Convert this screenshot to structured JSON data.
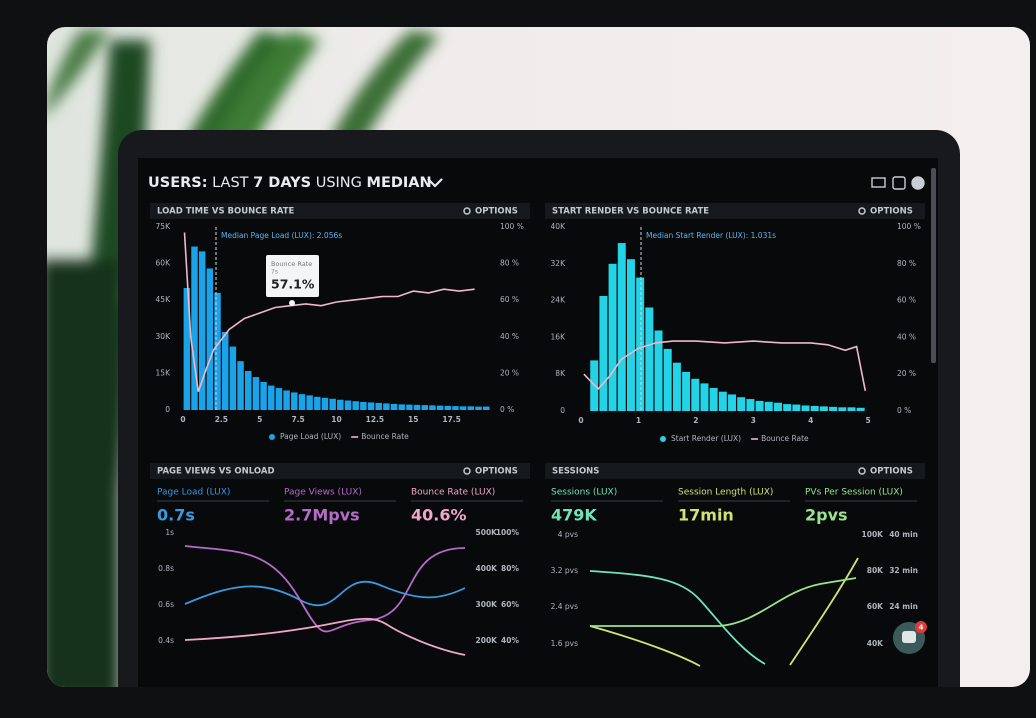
{
  "header": {
    "title": [
      "USERS:",
      "LAST",
      "7 DAYS",
      "USING",
      "MEDIAN"
    ]
  },
  "chart_data": [
    {
      "type": "histogram",
      "title": "LOAD TIME VS BOUNCE RATE",
      "options": "OPTIONS",
      "annotation": "Median Page Load (LUX): 2.056s",
      "tooltip": {
        "title": "Bounce Rate",
        "subtitle": "7s",
        "value": "57.1%"
      },
      "bins": [
        0,
        0.5,
        1,
        1.5,
        2,
        2.5,
        3,
        3.5,
        4,
        4.5,
        5,
        5.5,
        6,
        6.5,
        7,
        7.5,
        8,
        8.5,
        9,
        9.5,
        10,
        10.5,
        11,
        11.5,
        12,
        12.5,
        13,
        13.5,
        14,
        14.5,
        15,
        15.5,
        16,
        16.5,
        17,
        17.5,
        18,
        18.5,
        19,
        19.5,
        20
      ],
      "series": [
        {
          "name": "Page Load (LUX)",
          "color": "#1aa3e8",
          "values": [
            50000,
            67000,
            65000,
            58000,
            48000,
            32000,
            26000,
            20000,
            16000,
            13500,
            11500,
            10000,
            9000,
            8000,
            7200,
            6500,
            6000,
            5400,
            5000,
            4600,
            4200,
            3900,
            3600,
            3300,
            3100,
            2900,
            2700,
            2500,
            2300,
            2200,
            2100,
            2000,
            1900,
            1800,
            1700,
            1600,
            1500,
            1500,
            1400,
            1400
          ]
        },
        {
          "name": "Bounce Rate",
          "color": "#f0b8c8",
          "axis": "y2",
          "x": [
            0.1,
            0.5,
            1,
            1.5,
            2,
            3,
            4,
            5,
            6,
            7,
            8,
            9,
            10,
            11,
            12,
            13,
            14,
            15,
            16,
            17,
            18,
            19
          ],
          "values": [
            97,
            40,
            10,
            22,
            33,
            44,
            50,
            53,
            56,
            57,
            58,
            57,
            59,
            60,
            61,
            62,
            62,
            65,
            64,
            66,
            65,
            66
          ]
        }
      ],
      "xlim": [
        0,
        20
      ],
      "ylim": [
        0,
        75000
      ],
      "y2lim": [
        0,
        100
      ],
      "xticks": [
        0,
        2.5,
        5,
        7.5,
        10,
        12.5,
        15,
        17.5
      ],
      "yticks": [
        {
          "value": 75000,
          "label": "75K"
        },
        {
          "value": 60000,
          "label": "60K"
        },
        {
          "value": 45000,
          "label": "45K"
        },
        {
          "value": 30000,
          "label": "30K"
        },
        {
          "value": 15000,
          "label": "15K"
        },
        0
      ],
      "y2ticks": [
        {
          "value": 100,
          "label": "100 %"
        },
        {
          "value": 80,
          "label": "80 %"
        },
        {
          "value": 60,
          "label": "60 %"
        },
        {
          "value": 40,
          "label": "40 %"
        },
        {
          "value": 20,
          "label": "20 %"
        },
        {
          "value": 0,
          "label": "0 %"
        }
      ]
    },
    {
      "type": "histogram",
      "title": "START RENDER VS BOUNCE RATE",
      "options": "OPTIONS",
      "annotation": "Median Start Render (LUX): 1.031s",
      "bins": [
        0.15,
        0.31,
        0.47,
        0.63,
        0.79,
        0.95,
        1.11,
        1.27,
        1.43,
        1.59,
        1.75,
        1.91,
        2.07,
        2.23,
        2.39,
        2.55,
        2.71,
        2.87,
        3.03,
        3.19,
        3.35,
        3.51,
        3.67,
        3.83,
        3.99,
        4.15,
        4.31,
        4.47,
        4.63,
        4.79,
        4.95
      ],
      "series": [
        {
          "name": "Start Render (LUX)",
          "color": "#22d4e6",
          "values": [
            11000,
            25000,
            32000,
            36500,
            33000,
            29000,
            22500,
            17500,
            13500,
            10500,
            8500,
            7000,
            6000,
            5000,
            4200,
            3600,
            3000,
            2600,
            2200,
            2000,
            1800,
            1500,
            1400,
            1200,
            1100,
            1000,
            900,
            800,
            800,
            700
          ]
        },
        {
          "name": "Bounce Rate",
          "color": "#f0b8c8",
          "axis": "y2",
          "x": [
            0.05,
            0.3,
            0.5,
            0.7,
            1,
            1.3,
            1.6,
            2,
            2.5,
            3,
            3.5,
            4,
            4.3,
            4.6,
            4.8,
            4.95
          ],
          "values": [
            20,
            12,
            19,
            28,
            34,
            37,
            38,
            38,
            37,
            38,
            37,
            37,
            36,
            33,
            35,
            11
          ]
        }
      ],
      "xlim": [
        0,
        5.05
      ],
      "ylim": [
        0,
        40000
      ],
      "y2lim": [
        0,
        100
      ],
      "xticks": [
        0,
        1,
        2,
        3,
        4,
        5
      ],
      "yticks": [
        {
          "value": 40000,
          "label": "40K"
        },
        {
          "value": 32000,
          "label": "32K"
        },
        {
          "value": 24000,
          "label": "24K"
        },
        {
          "value": 16000,
          "label": "16K"
        },
        {
          "value": 8000,
          "label": "8K"
        },
        0
      ],
      "y2ticks": [
        {
          "value": 100,
          "label": "100 %"
        },
        {
          "value": 80,
          "label": "80 %"
        },
        {
          "value": 60,
          "label": "60 %"
        },
        {
          "value": 40,
          "label": "40 %"
        },
        {
          "value": 20,
          "label": "20 %"
        },
        {
          "value": 0,
          "label": "0 %"
        }
      ]
    }
  ],
  "metric_panels": [
    {
      "title": "PAGE VIEWS VS ONLOAD",
      "options": "OPTIONS",
      "metrics": [
        {
          "label": "Page Load (LUX)",
          "value": "0.7s",
          "color": "#3a9ae0"
        },
        {
          "label": "Page Views (LUX)",
          "value": "2.7Mpvs",
          "color": "#b86ac8"
        },
        {
          "label": "Bounce Rate (LUX)",
          "value": "40.6%",
          "color": "#f0a8c4"
        }
      ],
      "left_ticks": [
        "1s",
        "0.8s",
        "0.6s",
        "0.4s"
      ],
      "right_ticks": [
        "500K",
        "400K",
        "300K",
        "200K"
      ],
      "right_ticks_2": [
        "100%",
        "80%",
        "60%",
        "40%"
      ]
    },
    {
      "title": "SESSIONS",
      "options": "OPTIONS",
      "metrics": [
        {
          "label": "Sessions (LUX)",
          "value": "479K",
          "color": "#70e4b8"
        },
        {
          "label": "Session Length (LUX)",
          "value": "17min",
          "color": "#cfe474"
        },
        {
          "label": "PVs Per Session (LUX)",
          "value": "2pvs",
          "color": "#9be48c"
        }
      ],
      "left_ticks": [
        "4 pvs",
        "3.2 pvs",
        "2.4 pvs",
        "1.6 pvs"
      ],
      "right_ticks": [
        "100K",
        "80K",
        "60K",
        "40K"
      ],
      "right_ticks_2": [
        "40 min",
        "32 min",
        "24 min"
      ]
    }
  ],
  "chat_badge": "4"
}
